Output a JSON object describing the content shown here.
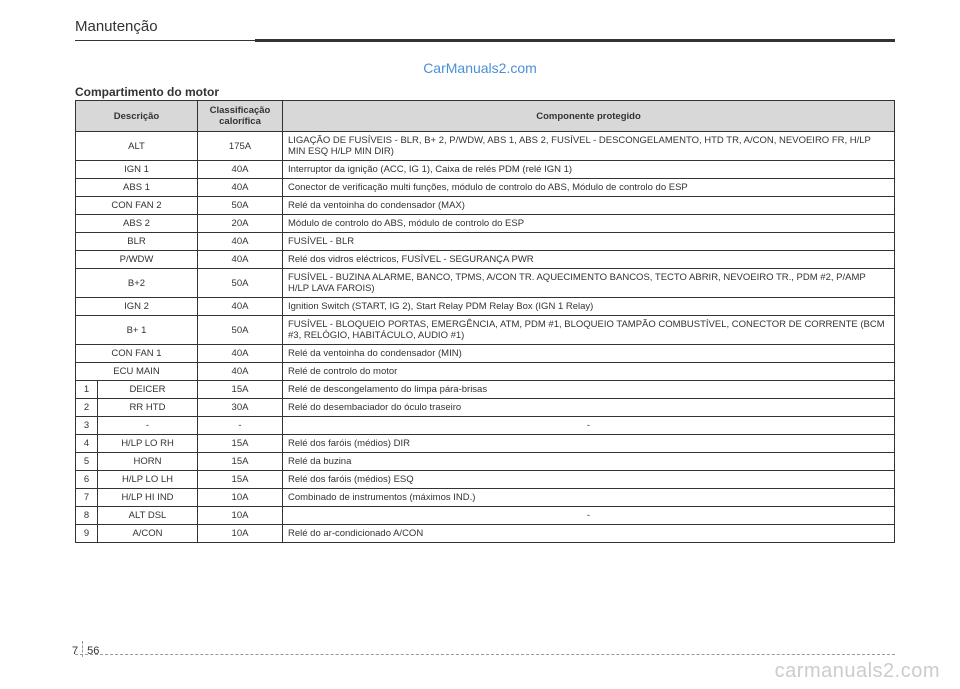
{
  "header": {
    "title": "Manutenção"
  },
  "watermarks": {
    "top": "CarManuals2.com",
    "bottom": "carmanuals2.com"
  },
  "section": {
    "title": "Compartimento do motor"
  },
  "table": {
    "headers": {
      "description": "Descrição",
      "rating": "Classificação calorífica",
      "component": "Componente protegido"
    },
    "rows": [
      {
        "desc": "ALT",
        "rating": "175A",
        "component": "LIGAÇÃO DE FUSÍVEIS - BLR, B+ 2, P/WDW, ABS 1, ABS 2, FUSÍVEL - DESCONGELAMENTO, HTD TR, A/CON, NEVOEIRO FR, H/LP MIN ESQ H/LP MIN DIR)"
      },
      {
        "desc": "IGN 1",
        "rating": "40A",
        "component": "Interruptor da ignição (ACC, IG 1), Caixa de relés PDM (relé IGN 1)"
      },
      {
        "desc": "ABS 1",
        "rating": "40A",
        "component": "Conector de verificação multi funções, módulo de controlo do ABS, Módulo de controlo do ESP"
      },
      {
        "desc": "CON FAN 2",
        "rating": "50A",
        "component": "Relé da ventoinha do condensador (MAX)"
      },
      {
        "desc": "ABS 2",
        "rating": "20A",
        "component": "Módulo de controlo do ABS, módulo de controlo do ESP"
      },
      {
        "desc": "BLR",
        "rating": "40A",
        "component": "FUSÍVEL - BLR"
      },
      {
        "desc": "P/WDW",
        "rating": "40A",
        "component": "Relé dos vidros eléctricos, FUSÍVEL - SEGURANÇA PWR"
      },
      {
        "desc": "B+2",
        "rating": "50A",
        "component": "FUSÍVEL - BUZINA ALARME, BANCO, TPMS, A/CON TR. AQUECIMENTO BANCOS, TECTO ABRIR, NEVOEIRO TR., PDM #2, P/AMP H/LP LAVA FAROIS)"
      },
      {
        "desc": "IGN 2",
        "rating": "40A",
        "component": "Ignition Switch (START, IG 2), Start Relay PDM Relay Box (IGN 1 Relay)"
      },
      {
        "desc": "B+ 1",
        "rating": "50A",
        "component": "FUSÍVEL - BLOQUEIO PORTAS, EMERGÊNCIA, ATM, PDM #1, BLOQUEIO TAMPÃO COMBUSTÍVEL, CONECTOR DE CORRENTE (BCM #3, RELÓGIO, HABITÁCULO, AUDIO #1)"
      },
      {
        "desc": "CON FAN 1",
        "rating": "40A",
        "component": "Relé da ventoinha do condensador (MIN)"
      },
      {
        "desc": "ECU MAIN",
        "rating": "40A",
        "component": "Relé de controlo do motor"
      }
    ],
    "numbered_rows": [
      {
        "num": "1",
        "desc": "DEICER",
        "rating": "15A",
        "component": "Relé de descongelamento do limpa pára-brisas"
      },
      {
        "num": "2",
        "desc": "RR HTD",
        "rating": "30A",
        "component": "Relé do desembaciador do óculo traseiro"
      },
      {
        "num": "3",
        "desc": "-",
        "rating": "-",
        "component": "-",
        "center": true
      },
      {
        "num": "4",
        "desc": "H/LP LO RH",
        "rating": "15A",
        "component": "Relé dos faróis (médios) DIR"
      },
      {
        "num": "5",
        "desc": "HORN",
        "rating": "15A",
        "component": "Relé da buzina"
      },
      {
        "num": "6",
        "desc": "H/LP LO LH",
        "rating": "15A",
        "component": "Relé dos faróis (médios) ESQ"
      },
      {
        "num": "7",
        "desc": "H/LP HI IND",
        "rating": "10A",
        "component": "Combinado de instrumentos (máximos IND.)"
      },
      {
        "num": "8",
        "desc": "ALT DSL",
        "rating": "10A",
        "component": "-",
        "center": true
      },
      {
        "num": "9",
        "desc": "A/CON",
        "rating": "10A",
        "component": "Relé do ar-condicionado A/CON"
      }
    ]
  },
  "footer": {
    "chapter": "7",
    "page": "56"
  },
  "styling": {
    "page_bg": "#ffffff",
    "text_color": "#333333",
    "header_bg": "#d8d8d8",
    "border_color": "#333333",
    "watermark_top_color": "#4a90d9",
    "watermark_bottom_color": "#cccccc",
    "dash_color": "#999999"
  }
}
